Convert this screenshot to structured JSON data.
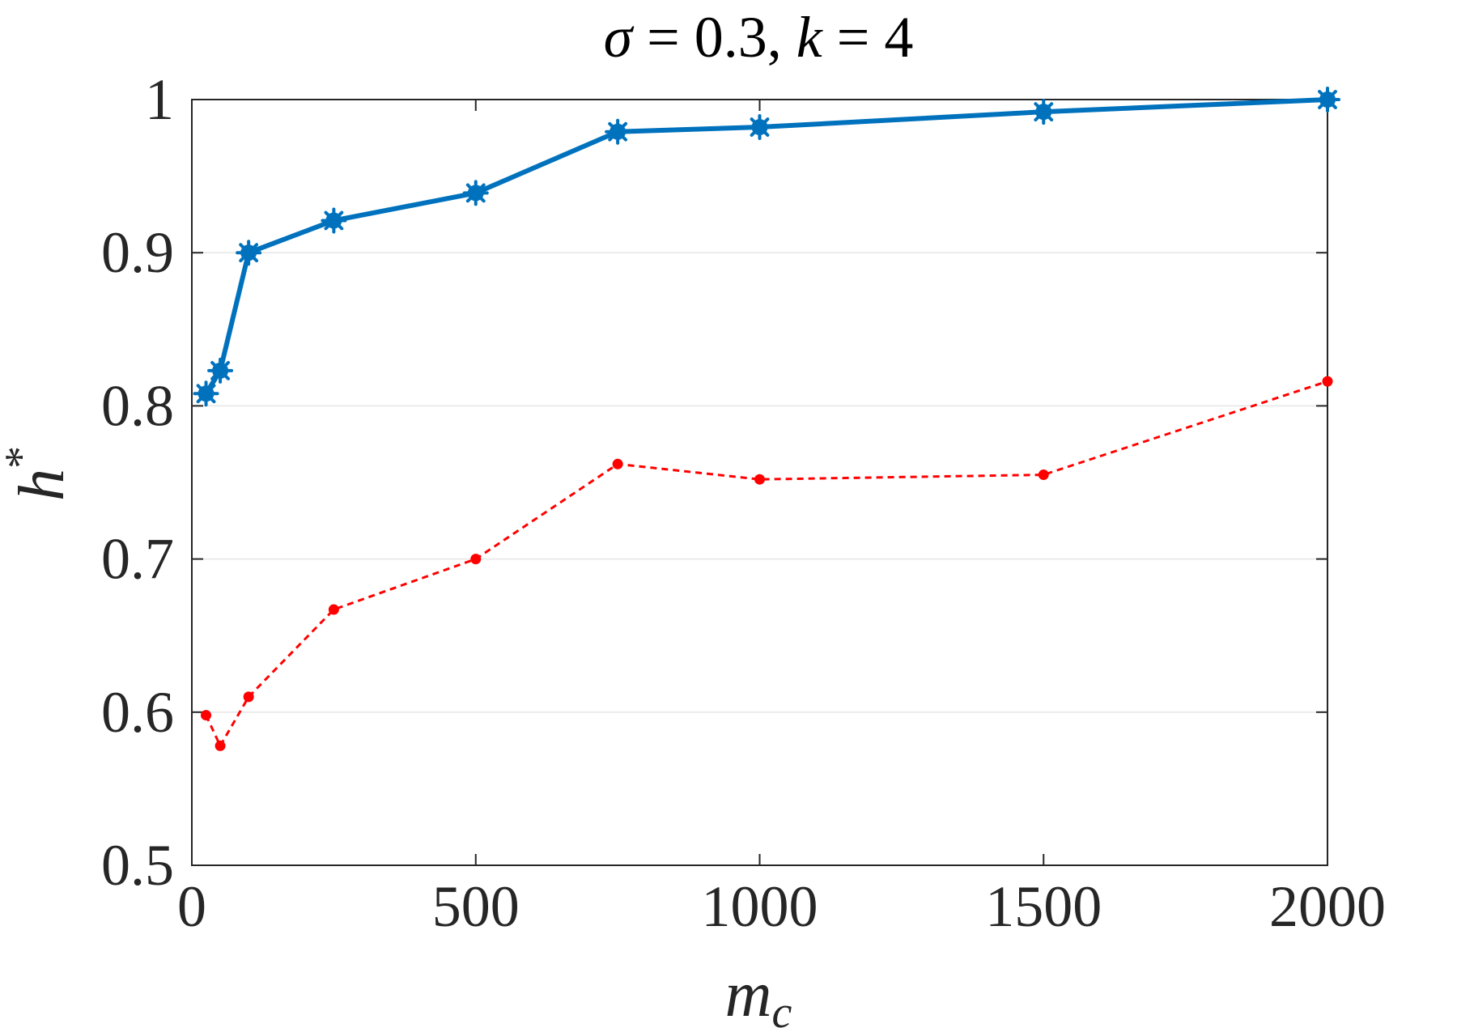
{
  "chart_data": {
    "type": "line",
    "title": "σ = 0.3, k = 4",
    "xlabel": "m_c",
    "ylabel": "h*",
    "xlim": [
      0,
      2000
    ],
    "ylim": [
      0.5,
      1
    ],
    "xticks": [
      0,
      500,
      1000,
      1500,
      2000
    ],
    "yticks": [
      0.5,
      0.6,
      0.7,
      0.8,
      0.9,
      1
    ],
    "xtick_labels": [
      "0",
      "500",
      "1000",
      "1500",
      "2000"
    ],
    "ytick_labels": [
      "0.5",
      "0.6",
      "0.7",
      "0.8",
      "0.9",
      "1"
    ],
    "grid": "horizontal",
    "series": [
      {
        "color": "#0072bd",
        "line_style": "solid",
        "marker": "star",
        "x": [
          25,
          50,
          100,
          250,
          500,
          750,
          1000,
          1500,
          2000
        ],
        "y": [
          0.808,
          0.823,
          0.9,
          0.921,
          0.939,
          0.979,
          0.982,
          0.992,
          1.0
        ]
      },
      {
        "color": "#ff0000",
        "line_style": "dotted",
        "marker": "dot",
        "x": [
          25,
          50,
          100,
          250,
          500,
          750,
          1000,
          1500,
          2000
        ],
        "y": [
          0.598,
          0.578,
          0.61,
          0.667,
          0.7,
          0.762,
          0.752,
          0.755,
          0.816
        ]
      }
    ]
  }
}
